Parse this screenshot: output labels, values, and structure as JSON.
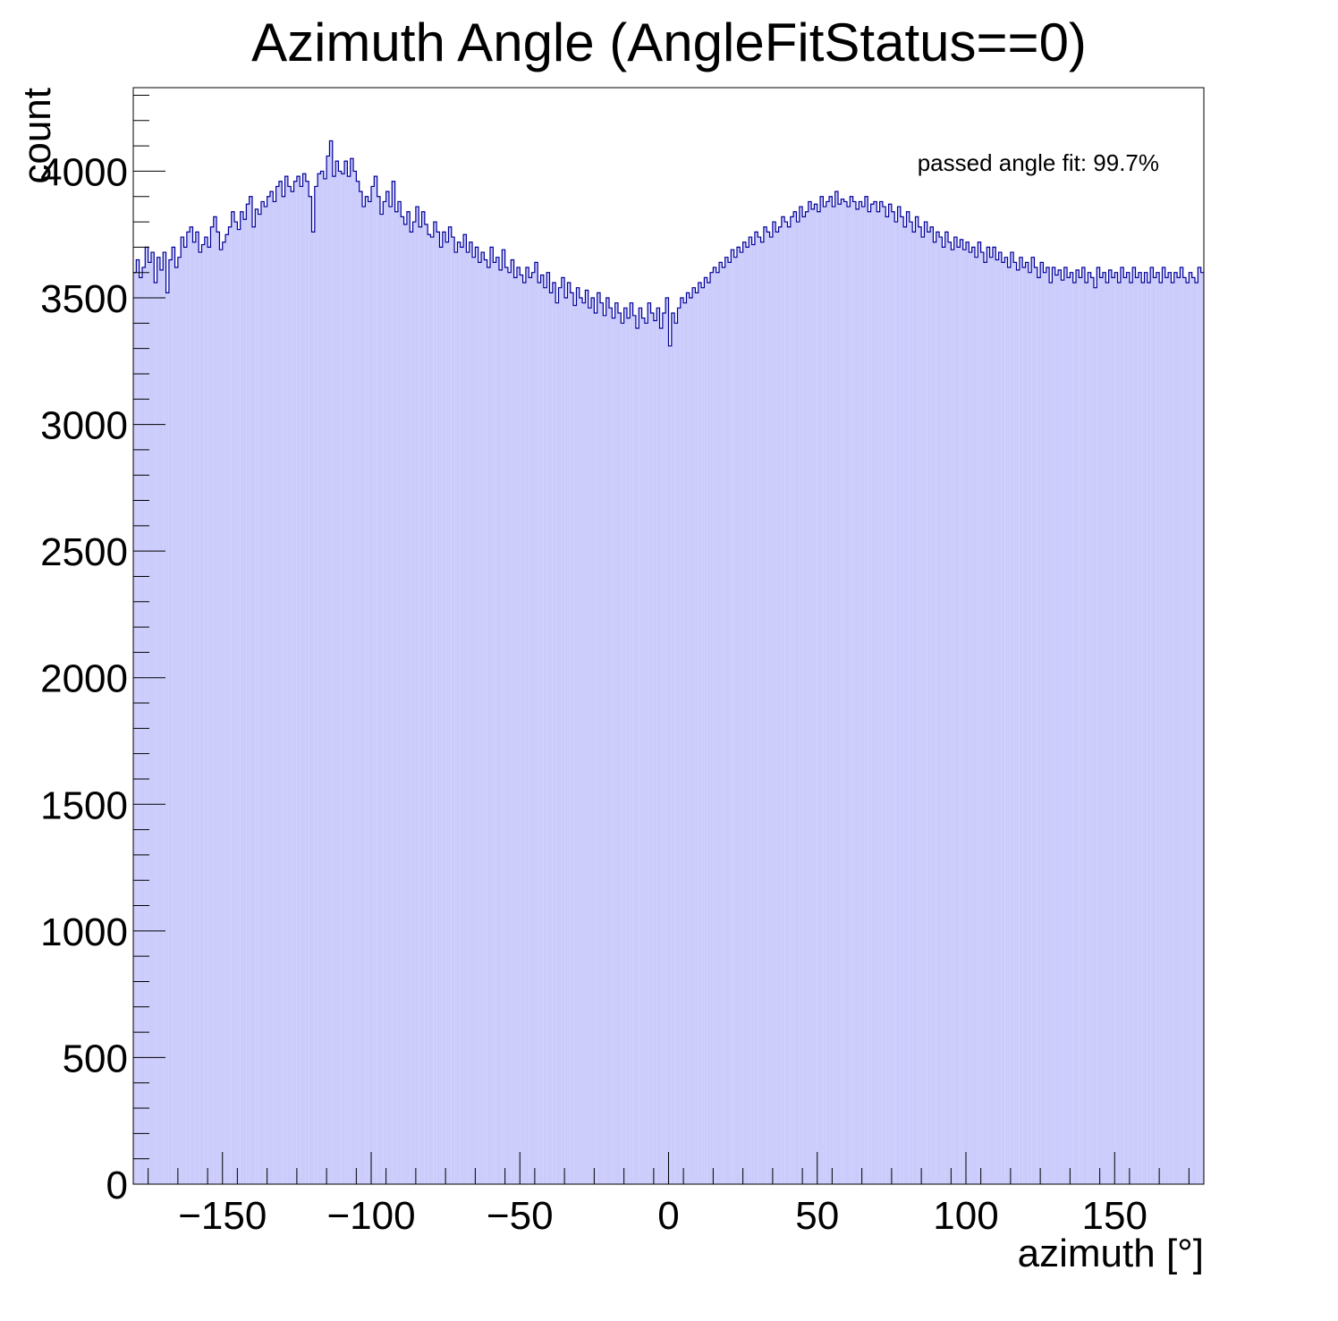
{
  "chart_data": {
    "type": "bar",
    "title": "Azimuth Angle (AngleFitStatus==0)",
    "xlabel": "azimuth [°]",
    "ylabel": "count",
    "annotation": "passed angle fit: 99.7%",
    "xlim": [
      -180,
      180
    ],
    "ylim": [
      0,
      4330
    ],
    "x_ticks": [
      -150,
      -100,
      -50,
      0,
      50,
      100,
      150
    ],
    "x_tick_labels": [
      "−150",
      "−100",
      "−50",
      "0",
      "50",
      "100",
      "150"
    ],
    "y_ticks": [
      0,
      500,
      1000,
      1500,
      2000,
      2500,
      3000,
      3500,
      4000
    ],
    "y_tick_labels": [
      "0",
      "500",
      "1000",
      "1500",
      "2000",
      "2500",
      "3000",
      "3500",
      "4000"
    ],
    "grid": false,
    "bin_width": 1,
    "bin_edges_range": [
      -180,
      180
    ],
    "values": [
      3600,
      3650,
      3580,
      3620,
      3700,
      3640,
      3680,
      3560,
      3660,
      3610,
      3680,
      3520,
      3650,
      3700,
      3620,
      3660,
      3740,
      3700,
      3760,
      3780,
      3720,
      3760,
      3680,
      3710,
      3740,
      3700,
      3780,
      3820,
      3760,
      3690,
      3720,
      3750,
      3780,
      3840,
      3800,
      3770,
      3840,
      3810,
      3870,
      3900,
      3780,
      3850,
      3830,
      3880,
      3860,
      3900,
      3920,
      3880,
      3940,
      3960,
      3900,
      3980,
      3940,
      3920,
      3960,
      3980,
      3940,
      3990,
      3960,
      3900,
      3760,
      3940,
      3990,
      4000,
      3970,
      4060,
      4120,
      3980,
      4040,
      4000,
      3990,
      4040,
      3980,
      4050,
      4000,
      3960,
      3920,
      3860,
      3900,
      3880,
      3940,
      3980,
      3900,
      3830,
      3880,
      3920,
      3860,
      3960,
      3840,
      3880,
      3820,
      3790,
      3840,
      3760,
      3800,
      3860,
      3780,
      3840,
      3790,
      3750,
      3740,
      3800,
      3760,
      3700,
      3760,
      3720,
      3780,
      3740,
      3680,
      3720,
      3700,
      3750,
      3680,
      3720,
      3660,
      3700,
      3640,
      3680,
      3650,
      3620,
      3700,
      3640,
      3660,
      3610,
      3690,
      3620,
      3600,
      3650,
      3580,
      3620,
      3590,
      3560,
      3620,
      3580,
      3600,
      3640,
      3560,
      3590,
      3540,
      3600,
      3520,
      3560,
      3480,
      3540,
      3580,
      3500,
      3560,
      3520,
      3470,
      3540,
      3500,
      3480,
      3530,
      3460,
      3500,
      3440,
      3520,
      3480,
      3430,
      3500,
      3460,
      3420,
      3480,
      3440,
      3400,
      3460,
      3420,
      3480,
      3430,
      3380,
      3460,
      3420,
      3400,
      3480,
      3440,
      3410,
      3460,
      3380,
      3440,
      3500,
      3310,
      3440,
      3400,
      3460,
      3500,
      3480,
      3520,
      3500,
      3540,
      3520,
      3560,
      3540,
      3580,
      3560,
      3600,
      3620,
      3600,
      3640,
      3620,
      3660,
      3640,
      3690,
      3660,
      3700,
      3680,
      3720,
      3700,
      3740,
      3710,
      3760,
      3740,
      3720,
      3780,
      3760,
      3740,
      3800,
      3760,
      3780,
      3820,
      3800,
      3780,
      3820,
      3840,
      3800,
      3860,
      3820,
      3840,
      3880,
      3850,
      3870,
      3840,
      3900,
      3860,
      3880,
      3900,
      3860,
      3920,
      3870,
      3890,
      3880,
      3860,
      3900,
      3880,
      3850,
      3880,
      3860,
      3900,
      3840,
      3870,
      3880,
      3840,
      3880,
      3860,
      3820,
      3870,
      3840,
      3800,
      3860,
      3820,
      3780,
      3840,
      3800,
      3760,
      3820,
      3780,
      3740,
      3800,
      3760,
      3780,
      3720,
      3760,
      3740,
      3700,
      3760,
      3720,
      3690,
      3740,
      3700,
      3730,
      3690,
      3720,
      3680,
      3700,
      3660,
      3720,
      3680,
      3640,
      3700,
      3660,
      3700,
      3650,
      3680,
      3640,
      3660,
      3620,
      3680,
      3640,
      3610,
      3660,
      3620,
      3640,
      3600,
      3660,
      3620,
      3580,
      3640,
      3600,
      3620,
      3560,
      3620,
      3590,
      3610,
      3570,
      3620,
      3580,
      3600,
      3560,
      3610,
      3580,
      3620,
      3560,
      3600,
      3580,
      3540,
      3620,
      3580,
      3600,
      3560,
      3610,
      3580,
      3600,
      3560,
      3620,
      3580,
      3600,
      3560,
      3620,
      3580,
      3600,
      3560,
      3600,
      3560,
      3620,
      3580,
      3600,
      3560,
      3620,
      3580,
      3600,
      3560,
      3600,
      3580,
      3620,
      3580,
      3560,
      3600,
      3580,
      3560,
      3620,
      3600
    ],
    "colors": {
      "fill": "#ccccfc",
      "line": "#000099",
      "axis": "#000000"
    }
  }
}
